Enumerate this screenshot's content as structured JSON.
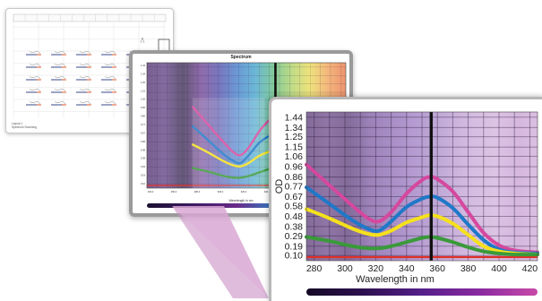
{
  "plate_window": {
    "legend_line1": "Layout 1",
    "legend_line2": "Spectrum Scanning"
  },
  "spectrum_window": {
    "title": "Spectrum",
    "xlabel": "Wavelength in nm",
    "y_ticks": [
      "1.44",
      "1.34",
      "1.25",
      "1.15",
      "1.06",
      "0.96",
      "0.86",
      "0.77",
      "0.67",
      "0.58",
      "0.48",
      "0.38",
      "0.29",
      "0.19",
      "0.10"
    ],
    "x_ticks": [
      "230.0",
      "250.0",
      "280.0",
      "300.0",
      "320.0",
      "340.0",
      "360.0",
      "380.0",
      "400.0"
    ]
  },
  "zoom_window": {
    "xlabel": "Wavelength in nm",
    "ylabel": "OD"
  },
  "colors": {
    "magenta": "#d5489e",
    "blue": "#1f78c8",
    "yellow": "#f5e11c",
    "green": "#3a9a3a",
    "marker": "#111111",
    "baseline": "#e0302a"
  },
  "chart_data": {
    "type": "line",
    "title": "",
    "xlabel": "Wavelength in nm",
    "ylabel": "OD",
    "xlim": [
      275,
      425
    ],
    "ylim": [
      0.05,
      1.49
    ],
    "x": [
      275,
      290,
      305,
      315,
      322,
      330,
      340,
      350,
      355,
      360,
      370,
      380,
      390,
      400,
      410,
      425
    ],
    "x_ticks": [
      280,
      300,
      320,
      340,
      360,
      380,
      400,
      420
    ],
    "y_ticks": [
      0.1,
      0.19,
      0.29,
      0.38,
      0.48,
      0.58,
      0.67,
      0.77,
      0.86,
      0.96,
      1.06,
      1.15,
      1.25,
      1.34,
      1.44
    ],
    "marker_x": 356,
    "series": [
      {
        "values": [
          0.98,
          0.78,
          0.58,
          0.46,
          0.43,
          0.52,
          0.7,
          0.83,
          0.86,
          0.84,
          0.72,
          0.52,
          0.32,
          0.2,
          0.15,
          0.13
        ]
      },
      {
        "values": [
          0.76,
          0.6,
          0.44,
          0.36,
          0.34,
          0.43,
          0.57,
          0.65,
          0.67,
          0.66,
          0.56,
          0.4,
          0.25,
          0.16,
          0.13,
          0.12
        ]
      },
      {
        "values": [
          0.55,
          0.46,
          0.36,
          0.31,
          0.3,
          0.34,
          0.42,
          0.47,
          0.49,
          0.48,
          0.41,
          0.3,
          0.19,
          0.14,
          0.12,
          0.11
        ]
      },
      {
        "values": [
          0.28,
          0.24,
          0.19,
          0.17,
          0.17,
          0.19,
          0.23,
          0.27,
          0.28,
          0.27,
          0.23,
          0.18,
          0.14,
          0.12,
          0.11,
          0.11
        ]
      }
    ]
  }
}
